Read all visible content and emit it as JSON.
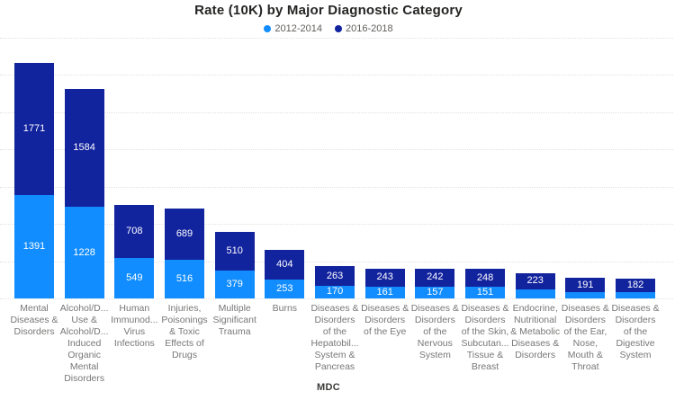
{
  "title": "Rate (10K) by Major Diagnostic Category",
  "x_axis_title": "MDC",
  "legend": {
    "items": [
      {
        "label": "2012-2014",
        "color": "#118DFF"
      },
      {
        "label": "2016-2018",
        "color": "#12239E"
      }
    ]
  },
  "chart_data": {
    "type": "bar",
    "stacked": true,
    "title": "Rate (10K) by Major Diagnostic Category",
    "xlabel": "MDC",
    "ylabel": "",
    "ylim": [
      0,
      3500
    ],
    "grid": true,
    "grid_interval": 500,
    "legend_position": "top-center",
    "categories": [
      "Mental Diseases & Disorders",
      "Alcohol/D... Use & Alcohol/D... Induced Organic Mental Disorders",
      "Human Immunod... Virus Infections",
      "Injuries, Poisonings & Toxic Effects of Drugs",
      "Multiple Significant Trauma",
      "Burns",
      "Diseases & Disorders of the Hepatobil... System & Pancreas",
      "Diseases & Disorders of the Eye",
      "Diseases & Disorders of the Nervous System",
      "Diseases & Disorders of the Skin, Subcutan... Tissue & Breast",
      "Endocrine, Nutritional & Metabolic Diseases & Disorders",
      "Diseases & Disorders of the Ear, Nose, Mouth & Throat",
      "Diseases & Disorders of the Digestive System"
    ],
    "series": [
      {
        "name": "2012-2014",
        "color": "#118DFF",
        "values": [
          1391,
          1228,
          549,
          516,
          379,
          253,
          170,
          161,
          157,
          151,
          120,
          85,
          80
        ],
        "labels": [
          "1391",
          "1228",
          "549",
          "516",
          "379",
          "253",
          "170",
          "161",
          "157",
          "151",
          "",
          "",
          ""
        ]
      },
      {
        "name": "2016-2018",
        "color": "#12239E",
        "values": [
          1771,
          1584,
          708,
          689,
          510,
          404,
          263,
          243,
          242,
          248,
          223,
          191,
          182
        ],
        "labels": [
          "1771",
          "1584",
          "708",
          "689",
          "510",
          "404",
          "263",
          "243",
          "242",
          "248",
          "223",
          "191",
          "182"
        ]
      }
    ]
  }
}
